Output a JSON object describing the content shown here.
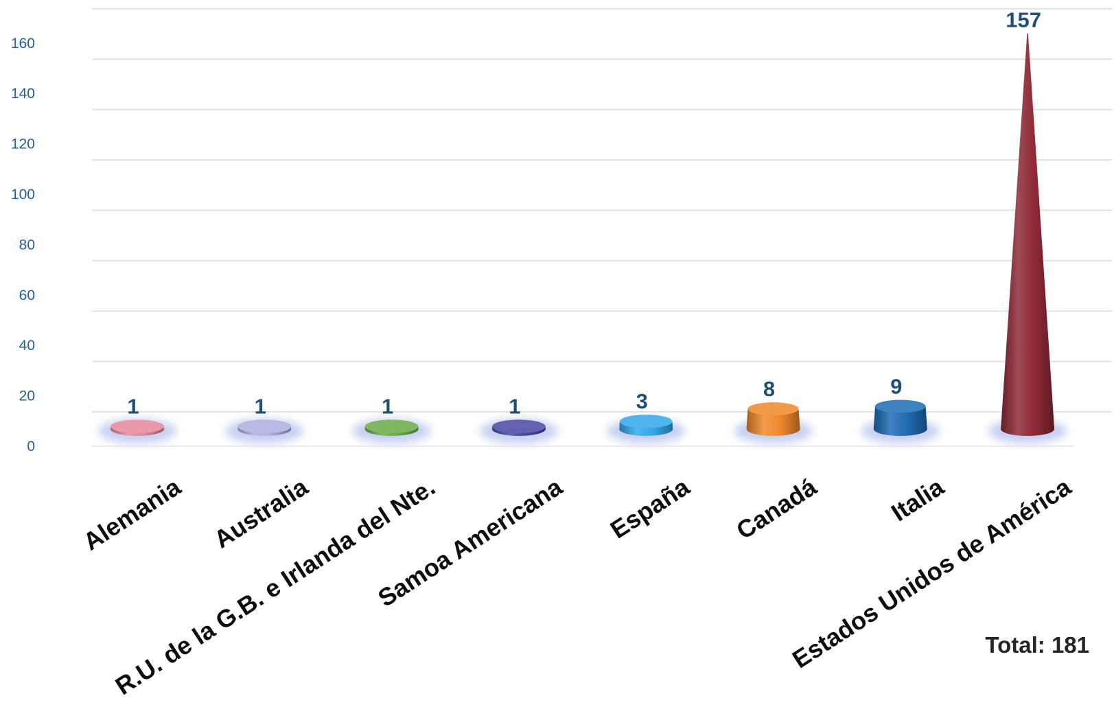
{
  "chart_data": {
    "type": "bar",
    "categories": [
      "Alemania",
      "Australia",
      "R.U. de la G.B. e Irlanda del Nte.",
      "Samoa Americana",
      "España",
      "Canadá",
      "Italia",
      "Estados Unidos de América"
    ],
    "values": [
      1,
      1,
      1,
      1,
      3,
      8,
      9,
      157
    ],
    "colors": [
      "#e8879c",
      "#aeaee0",
      "#6aaa46",
      "#4a48a6",
      "#34a9ea",
      "#f0892a",
      "#1e6cb5",
      "#8e2a36"
    ],
    "ylim": [
      0,
      160
    ],
    "yticks": [
      0,
      20,
      40,
      60,
      80,
      100,
      120,
      140,
      160
    ],
    "data_labels": true,
    "grid": true
  },
  "total_label": "Total: 181",
  "style_colors": {
    "data_label": "#1f4e79",
    "axis_tick": "#245e95",
    "category_label": "#0d0d0d",
    "total_label": "#262626",
    "gridline": "#e2e2e2",
    "shadow": "#b8c5ee"
  }
}
